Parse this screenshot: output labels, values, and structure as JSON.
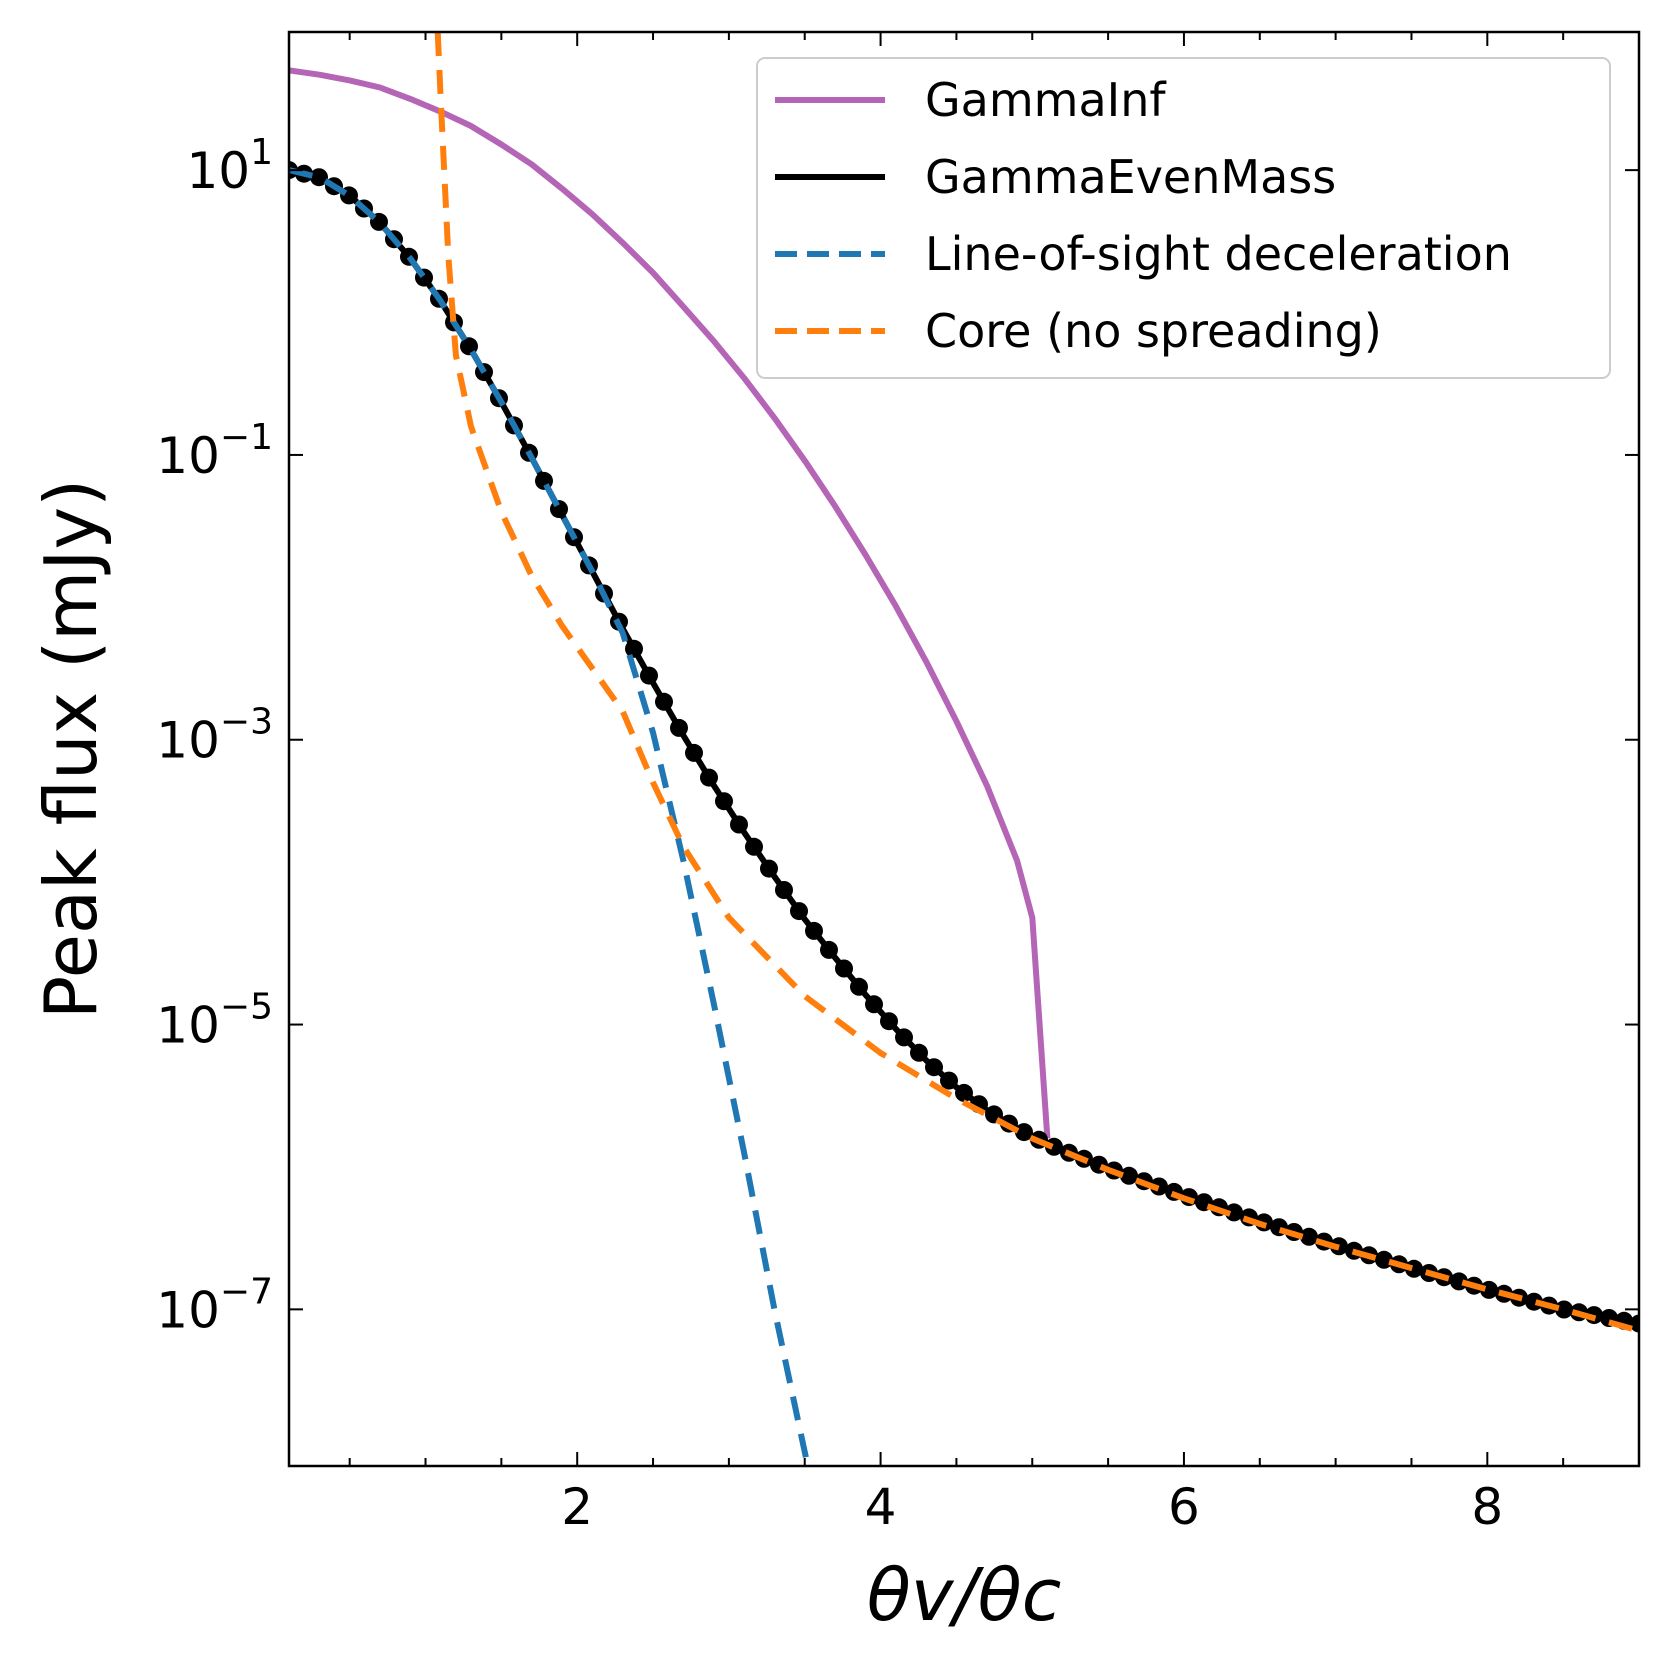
{
  "chart_data": {
    "type": "line",
    "title": "",
    "xlabel": "θv/θc",
    "ylabel": "Peak flux (mJy)",
    "xscale": "linear",
    "yscale": "log",
    "xlim": [
      0.1,
      9.0
    ],
    "ylim_log10": [
      -8.1,
      1.97
    ],
    "x_ticks": [
      {
        "value": 2,
        "label": "2"
      },
      {
        "value": 4,
        "label": "4"
      },
      {
        "value": 6,
        "label": "6"
      },
      {
        "value": 8,
        "label": "8"
      }
    ],
    "y_ticks": [
      {
        "log10": 1,
        "base": "10",
        "exp": "1"
      },
      {
        "log10": -1,
        "base": "10",
        "exp": "−1"
      },
      {
        "log10": -3,
        "base": "10",
        "exp": "−3"
      },
      {
        "log10": -5,
        "base": "10",
        "exp": "−5"
      },
      {
        "log10": -7,
        "base": "10",
        "exp": "−7"
      }
    ],
    "legend_position": "top-right",
    "series": [
      {
        "name": "GammaInf",
        "color": "#b565b5",
        "style": "solid",
        "x": [
          0.1,
          0.3,
          0.5,
          0.7,
          0.9,
          1.1,
          1.3,
          1.5,
          1.7,
          1.9,
          2.1,
          2.3,
          2.5,
          2.7,
          2.9,
          3.1,
          3.3,
          3.5,
          3.7,
          3.9,
          4.1,
          4.3,
          4.5,
          4.7,
          4.9,
          5.0,
          5.1
        ],
        "log10y": [
          1.7,
          1.67,
          1.63,
          1.58,
          1.5,
          1.41,
          1.31,
          1.18,
          1.04,
          0.87,
          0.69,
          0.49,
          0.28,
          0.04,
          -0.2,
          -0.46,
          -0.74,
          -1.04,
          -1.36,
          -1.7,
          -2.06,
          -2.45,
          -2.87,
          -3.32,
          -3.85,
          -4.25,
          -5.8
        ]
      },
      {
        "name": "GammaEvenMass",
        "color": "#000000",
        "style": "solid-dots",
        "x": [
          0.1,
          0.3,
          0.5,
          0.7,
          0.9,
          1.1,
          1.3,
          1.5,
          1.7,
          1.9,
          2.1,
          2.3,
          2.5,
          2.7,
          2.9,
          3.1,
          3.3,
          3.5,
          3.7,
          3.9,
          4.1,
          4.3,
          4.5,
          4.7,
          4.9,
          5.1,
          5.5,
          6.0,
          6.5,
          7.0,
          7.5,
          8.0,
          8.5,
          9.0
        ],
        "log10y": [
          1.0,
          0.95,
          0.82,
          0.63,
          0.38,
          0.08,
          -0.26,
          -0.63,
          -1.02,
          -1.42,
          -1.82,
          -2.22,
          -2.6,
          -2.97,
          -3.32,
          -3.65,
          -3.96,
          -4.26,
          -4.53,
          -4.79,
          -5.03,
          -5.25,
          -5.44,
          -5.6,
          -5.73,
          -5.84,
          -6.01,
          -6.2,
          -6.38,
          -6.55,
          -6.71,
          -6.86,
          -7.0,
          -7.1
        ]
      },
      {
        "name": "Line-of-sight deceleration",
        "color": "#1f77b4",
        "style": "dashed",
        "x": [
          0.1,
          0.3,
          0.5,
          0.7,
          0.9,
          1.1,
          1.3,
          1.5,
          1.7,
          1.9,
          2.1,
          2.3,
          2.5,
          2.7,
          2.9,
          3.1,
          3.3,
          3.5,
          3.52
        ],
        "log10y": [
          1.0,
          0.95,
          0.82,
          0.63,
          0.38,
          0.08,
          -0.26,
          -0.63,
          -1.02,
          -1.42,
          -1.82,
          -2.25,
          -2.95,
          -3.85,
          -4.85,
          -5.9,
          -7.0,
          -8.0,
          -8.1
        ]
      },
      {
        "name": "Core (no spreading)",
        "color": "#ff7f0e",
        "style": "dashed",
        "x": [
          1.08,
          1.1,
          1.15,
          1.2,
          1.3,
          1.4,
          1.5,
          1.7,
          1.9,
          2.1,
          2.3,
          2.5,
          2.7,
          3.0,
          3.5,
          4.0,
          4.5,
          5.0,
          5.5,
          6.0,
          6.5,
          7.0,
          7.5,
          8.0,
          8.5,
          9.0
        ],
        "log10y": [
          1.97,
          1.5,
          0.4,
          -0.3,
          -0.8,
          -1.1,
          -1.4,
          -1.85,
          -2.2,
          -2.5,
          -2.8,
          -3.3,
          -3.75,
          -4.25,
          -4.8,
          -5.2,
          -5.52,
          -5.8,
          -6.02,
          -6.22,
          -6.4,
          -6.56,
          -6.71,
          -6.86,
          -7.0,
          -7.15
        ]
      }
    ]
  }
}
